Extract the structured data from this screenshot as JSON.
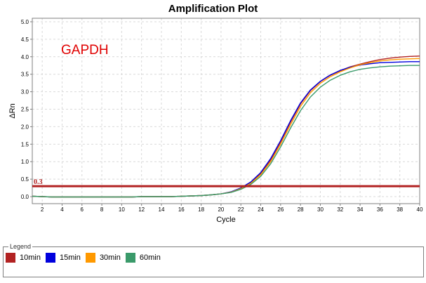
{
  "chart_data": {
    "type": "line",
    "title": "Amplification Plot",
    "xlabel": "Cycle",
    "ylabel": "ΔRn",
    "xlim": [
      1,
      40
    ],
    "ylim": [
      -0.2,
      5.1
    ],
    "xticks": [
      2,
      4,
      6,
      8,
      10,
      12,
      14,
      16,
      18,
      20,
      22,
      24,
      26,
      28,
      30,
      32,
      34,
      36,
      38,
      40
    ],
    "yticks": [
      0.0,
      0.5,
      1.0,
      1.5,
      2.0,
      2.5,
      3.0,
      3.5,
      4.0,
      4.5,
      5.0
    ],
    "ytick_labels": [
      "0.0",
      "0.5",
      "1.0",
      "1.5",
      "2.0",
      "2.5",
      "3.0",
      "3.5",
      "4.0",
      "4.5",
      "5.0"
    ],
    "grid": true,
    "x": [
      1,
      2,
      3,
      4,
      5,
      6,
      7,
      8,
      9,
      10,
      11,
      12,
      13,
      14,
      15,
      16,
      17,
      18,
      19,
      20,
      21,
      22,
      23,
      24,
      25,
      26,
      27,
      28,
      29,
      30,
      31,
      32,
      33,
      34,
      35,
      36,
      37,
      38,
      39,
      40
    ],
    "series": [
      {
        "name": "10min",
        "color": "#b22222",
        "values": [
          0.01,
          0.0,
          -0.01,
          -0.01,
          -0.01,
          -0.01,
          -0.01,
          -0.01,
          -0.01,
          -0.01,
          -0.01,
          0.0,
          0.0,
          0.0,
          0.0,
          0.01,
          0.02,
          0.03,
          0.05,
          0.08,
          0.13,
          0.24,
          0.4,
          0.66,
          1.05,
          1.56,
          2.13,
          2.65,
          3.03,
          3.29,
          3.47,
          3.6,
          3.71,
          3.79,
          3.86,
          3.92,
          3.96,
          3.99,
          4.01,
          4.02
        ]
      },
      {
        "name": "15min",
        "color": "#0000dd",
        "values": [
          0.01,
          0.0,
          -0.01,
          -0.01,
          -0.01,
          -0.01,
          -0.01,
          -0.01,
          -0.01,
          -0.01,
          -0.01,
          0.0,
          0.0,
          0.0,
          0.0,
          0.01,
          0.02,
          0.03,
          0.05,
          0.08,
          0.14,
          0.25,
          0.42,
          0.69,
          1.09,
          1.6,
          2.17,
          2.68,
          3.05,
          3.3,
          3.48,
          3.61,
          3.7,
          3.76,
          3.8,
          3.83,
          3.84,
          3.85,
          3.86,
          3.86
        ]
      },
      {
        "name": "30min",
        "color": "#ff9900",
        "values": [
          0.01,
          0.0,
          -0.01,
          -0.01,
          -0.01,
          -0.01,
          -0.01,
          -0.01,
          -0.01,
          -0.01,
          -0.01,
          0.0,
          0.0,
          0.0,
          0.0,
          0.01,
          0.02,
          0.03,
          0.05,
          0.08,
          0.13,
          0.23,
          0.38,
          0.63,
          1.0,
          1.5,
          2.06,
          2.58,
          2.97,
          3.24,
          3.43,
          3.57,
          3.68,
          3.77,
          3.83,
          3.88,
          3.91,
          3.93,
          3.94,
          3.95
        ]
      },
      {
        "name": "60min",
        "color": "#3a9a6a",
        "values": [
          0.01,
          0.0,
          -0.01,
          -0.01,
          -0.01,
          -0.01,
          -0.01,
          -0.01,
          -0.01,
          -0.01,
          -0.01,
          0.0,
          0.0,
          0.0,
          0.0,
          0.01,
          0.02,
          0.03,
          0.05,
          0.08,
          0.12,
          0.21,
          0.35,
          0.58,
          0.94,
          1.42,
          1.96,
          2.46,
          2.85,
          3.13,
          3.33,
          3.47,
          3.57,
          3.64,
          3.68,
          3.71,
          3.73,
          3.74,
          3.75,
          3.75
        ]
      }
    ],
    "threshold": {
      "value": 0.3,
      "label": "0.3",
      "color": "#b22222"
    },
    "annotation": {
      "text": "GAPDH",
      "color": "#e00000"
    },
    "legend": {
      "title": "Legend",
      "placement": "bottom"
    }
  }
}
